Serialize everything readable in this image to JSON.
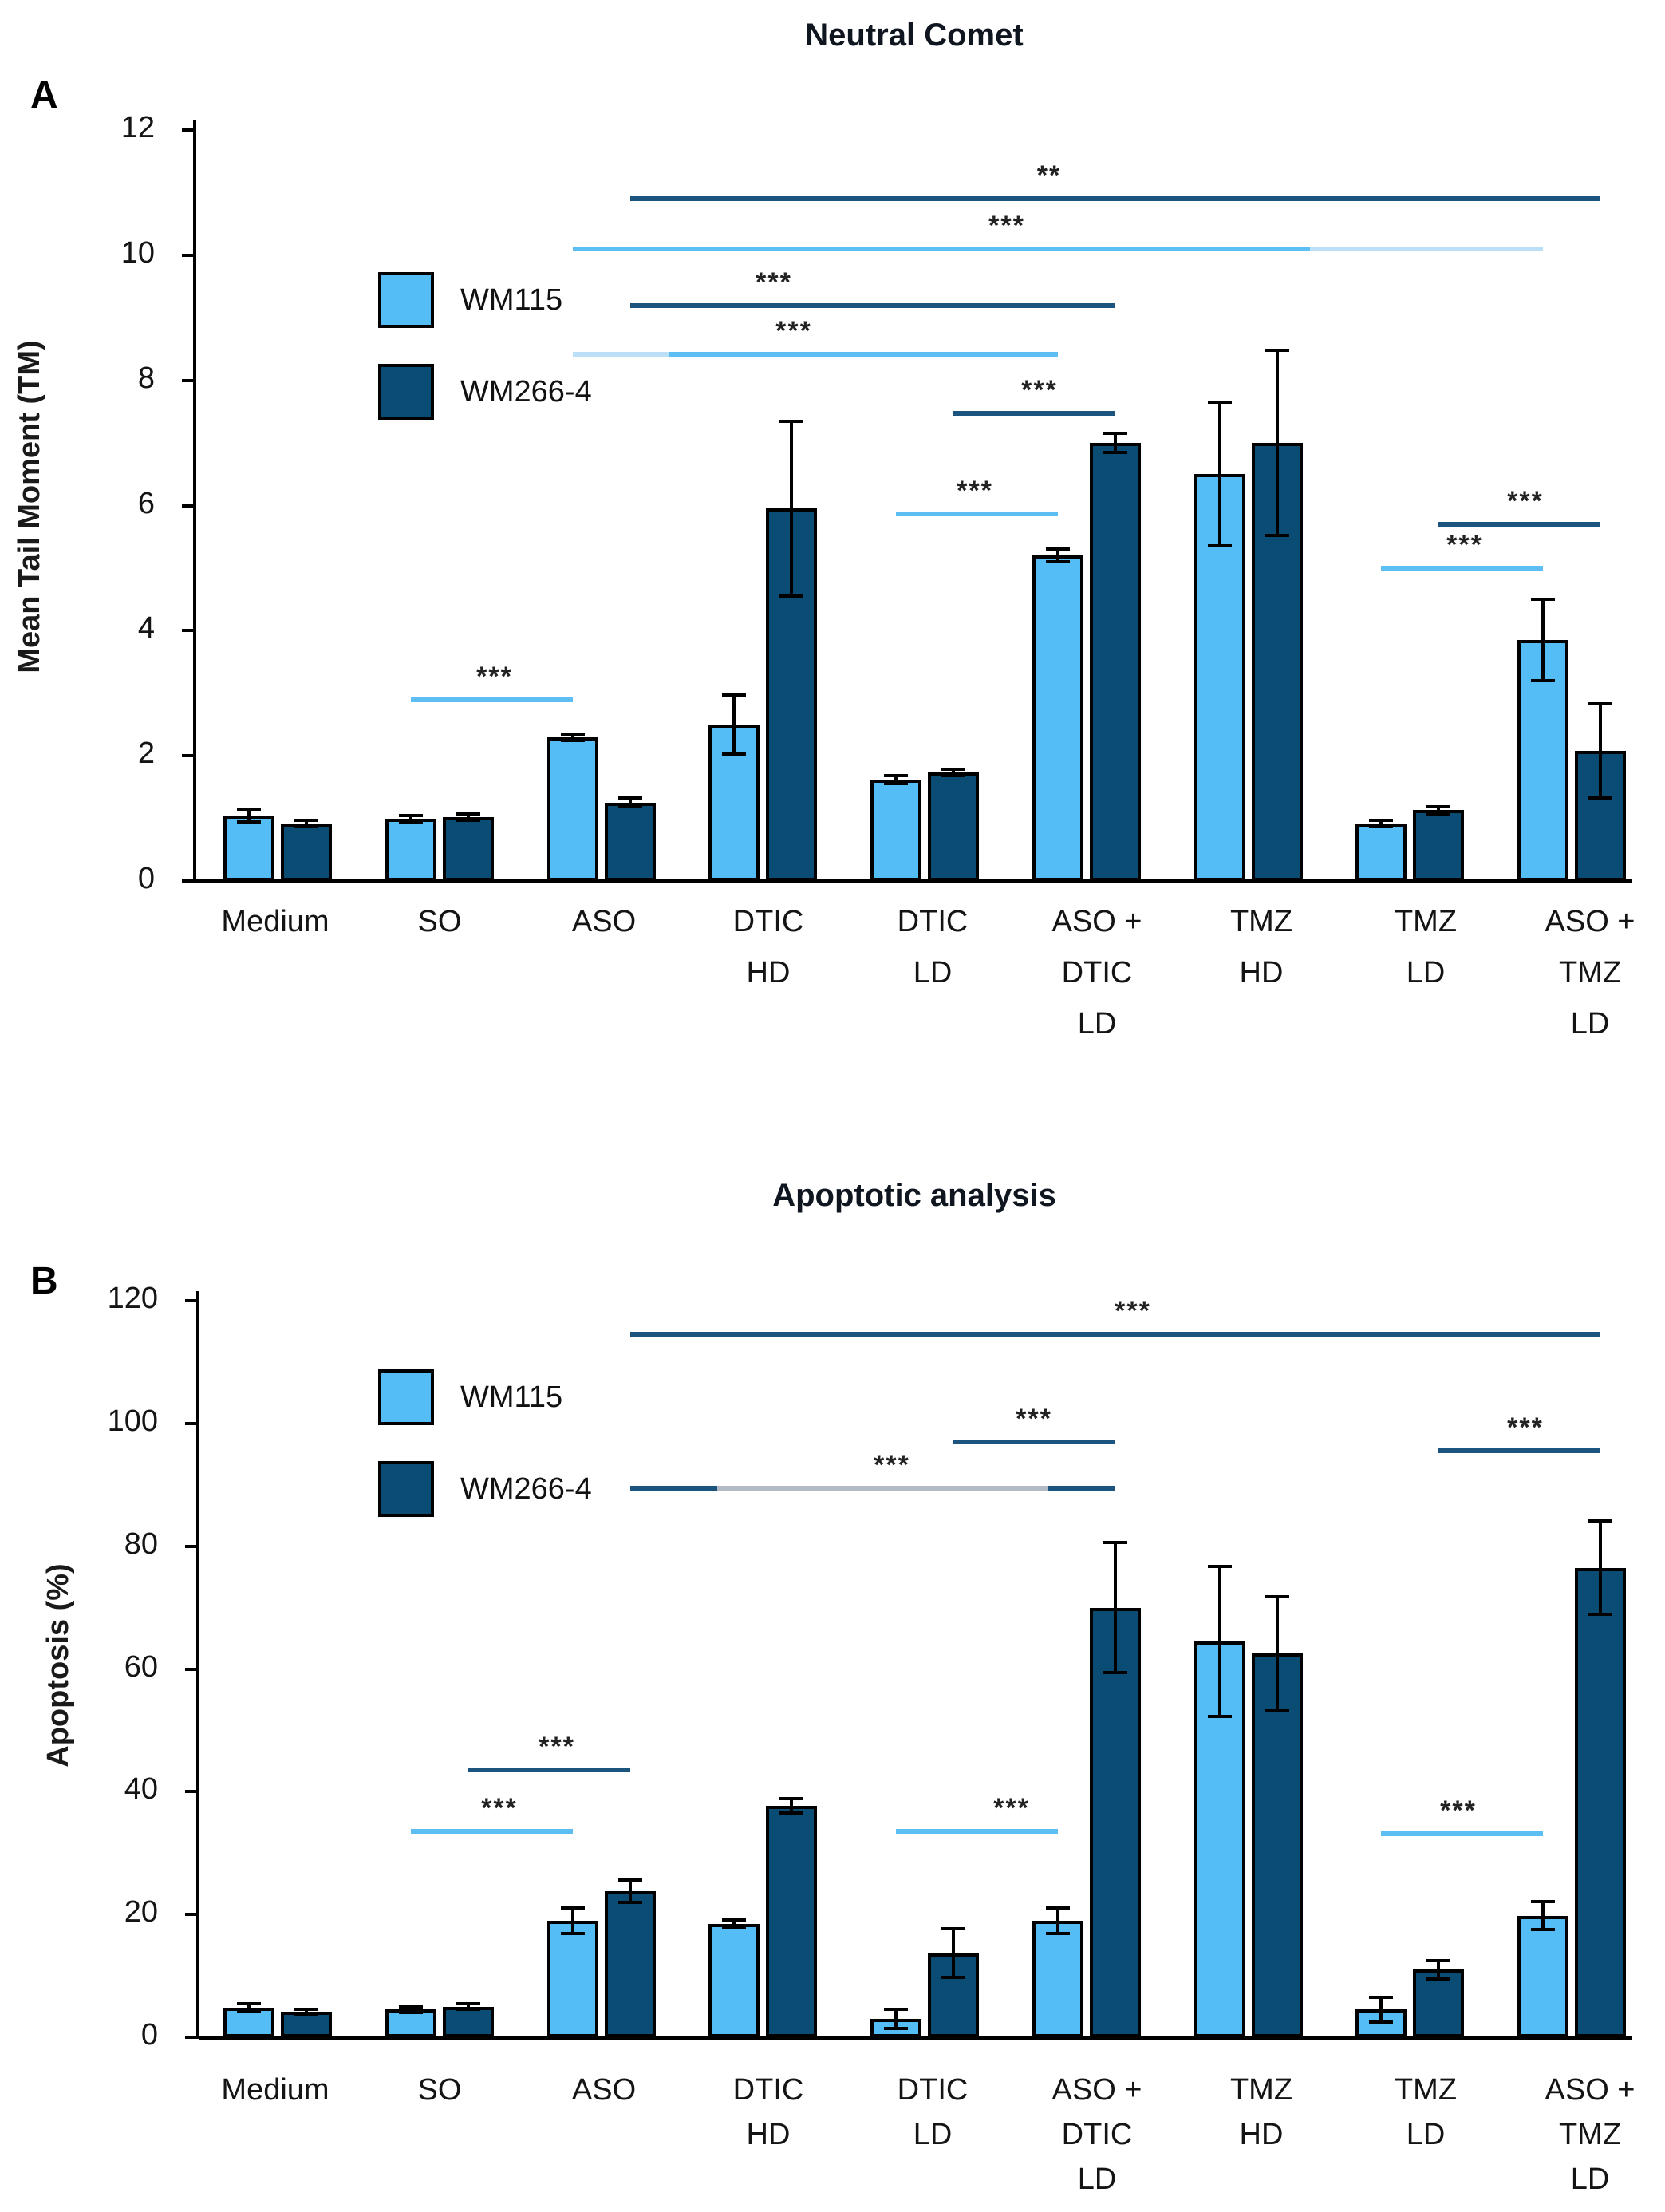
{
  "colors": {
    "light": "#55BDF5",
    "dark": "#0B4C75",
    "light_faded": "#BBDFF7",
    "gray": "#B2BAC6",
    "sig_dark": "#1A547F",
    "sig_light": "#5CBEF2"
  },
  "chart_data": [
    {
      "type": "bar",
      "panel_label": "A",
      "title": "Neutral Comet",
      "ylabel": "Mean Tail Moment (TM)",
      "xlabel": "",
      "ylim": [
        0,
        12
      ],
      "ytick_step": 2,
      "grid": false,
      "legend_position": "top-left",
      "categories": [
        [
          "Medium"
        ],
        [
          "SO"
        ],
        [
          "ASO"
        ],
        [
          "DTIC",
          "HD"
        ],
        [
          "DTIC",
          "LD"
        ],
        [
          "ASO +",
          "DTIC",
          "LD"
        ],
        [
          "TMZ",
          "HD"
        ],
        [
          "TMZ",
          "LD"
        ],
        [
          "ASO +",
          "TMZ",
          "LD"
        ]
      ],
      "series": [
        {
          "name": "WM115",
          "color_key": "light",
          "values": [
            1.05,
            1.0,
            2.3,
            2.5,
            1.62,
            5.2,
            6.5,
            0.92,
            3.85
          ],
          "errors": [
            0.1,
            0.05,
            0.05,
            0.47,
            0.06,
            0.1,
            1.15,
            0.05,
            0.65
          ]
        },
        {
          "name": "WM266-4",
          "color_key": "dark",
          "values": [
            0.92,
            1.02,
            1.25,
            5.95,
            1.73,
            7.0,
            7.0,
            1.13,
            2.08
          ],
          "errors": [
            0.05,
            0.05,
            0.07,
            1.4,
            0.05,
            0.15,
            1.48,
            0.06,
            0.75
          ]
        }
      ],
      "significance": [
        {
          "y": 10.9,
          "label": "**",
          "color": "dark",
          "from": [
            2,
            1
          ],
          "to": [
            8,
            1
          ],
          "label_x": 1315
        },
        {
          "y": 10.1,
          "label": "***",
          "color": "light",
          "from": [
            2,
            0
          ],
          "to": [
            8,
            0
          ],
          "label_x": 1262,
          "segments": [
            {
              "t0": 0,
              "t1": 0.76,
              "color": "light"
            },
            {
              "t0": 0.76,
              "t1": 1,
              "color": "light_faded"
            }
          ]
        },
        {
          "y": 9.2,
          "label": "***",
          "color": "dark",
          "from": [
            2,
            1
          ],
          "to": [
            5,
            1
          ],
          "label_x": 970
        },
        {
          "y": 8.42,
          "label": "***",
          "color": "light",
          "from": [
            2,
            0
          ],
          "to": [
            5,
            0
          ],
          "label_x": 995,
          "segments": [
            {
              "t0": 0,
              "t1": 0.2,
              "color": "light_faded"
            },
            {
              "t0": 0.2,
              "t1": 1,
              "color": "light"
            }
          ]
        },
        {
          "y": 7.47,
          "label": "***",
          "color": "dark",
          "from": [
            4,
            1
          ],
          "to": [
            5,
            1
          ],
          "label_x": 1303
        },
        {
          "y": 5.86,
          "label": "***",
          "color": "light",
          "from": [
            4,
            0
          ],
          "to": [
            5,
            0
          ],
          "label_x": 1222
        },
        {
          "y": 5.7,
          "label": "***",
          "color": "dark",
          "from": [
            7,
            1
          ],
          "to": [
            8,
            1
          ],
          "label_x": 1912
        },
        {
          "y": 5.0,
          "label": "***",
          "color": "light",
          "from": [
            7,
            0
          ],
          "to": [
            8,
            0
          ],
          "label_x": 1836
        },
        {
          "y": 2.9,
          "label": "***",
          "color": "light",
          "from": [
            1,
            0
          ],
          "to": [
            2,
            0
          ],
          "label_x": 620
        }
      ]
    },
    {
      "type": "bar",
      "panel_label": "B",
      "title": "Apoptotic analysis",
      "ylabel": "Apoptosis (%)",
      "xlabel": "",
      "ylim": [
        0,
        120
      ],
      "ytick_step": 20,
      "grid": false,
      "legend_position": "top-left",
      "categories": [
        [
          "Medium"
        ],
        [
          "SO"
        ],
        [
          "ASO"
        ],
        [
          "DTIC",
          "HD"
        ],
        [
          "DTIC",
          "LD"
        ],
        [
          "ASO +",
          "DTIC",
          "LD"
        ],
        [
          "TMZ",
          "HD"
        ],
        [
          "TMZ",
          "LD"
        ],
        [
          "ASO +",
          "TMZ",
          "LD"
        ]
      ],
      "series": [
        {
          "name": "WM115",
          "color_key": "light",
          "values": [
            4.8,
            4.5,
            19.0,
            18.5,
            3.0,
            19.0,
            64.5,
            4.5,
            19.8
          ],
          "errors": [
            0.6,
            0.5,
            2.1,
            0.6,
            1.6,
            2.1,
            12.2,
            2.0,
            2.3
          ]
        },
        {
          "name": "WM266-4",
          "color_key": "dark",
          "values": [
            4.2,
            5.0,
            23.8,
            37.7,
            13.7,
            70.0,
            62.5,
            11.0,
            76.5
          ],
          "errors": [
            0.4,
            0.5,
            1.8,
            1.2,
            4.0,
            10.6,
            9.3,
            1.5,
            7.6
          ]
        }
      ],
      "significance": [
        {
          "y": 114.5,
          "label": "***",
          "color": "dark",
          "from": [
            2,
            1
          ],
          "to": [
            8,
            1
          ],
          "label_x": 1420
        },
        {
          "y": 97.0,
          "label": "***",
          "color": "dark",
          "from": [
            4,
            1
          ],
          "to": [
            5,
            1
          ],
          "label_x": 1296
        },
        {
          "y": 89.5,
          "label": "***",
          "color": "dark",
          "from": [
            2,
            1
          ],
          "to": [
            5,
            1
          ],
          "label_x": 1118,
          "segments": [
            {
              "t0": 0,
              "t1": 0.18,
              "color": "dark"
            },
            {
              "t0": 0.18,
              "t1": 0.86,
              "color": "gray"
            },
            {
              "t0": 0.86,
              "t1": 1,
              "color": "dark"
            }
          ]
        },
        {
          "y": 95.5,
          "label": "***",
          "color": "dark",
          "from": [
            7,
            1
          ],
          "to": [
            8,
            1
          ],
          "label_x": 1912
        },
        {
          "y": 43.5,
          "label": "***",
          "color": "dark",
          "from": [
            1,
            1
          ],
          "to": [
            2,
            1
          ],
          "label_x": 698
        },
        {
          "y": 33.5,
          "label": "***",
          "color": "light",
          "from": [
            1,
            0
          ],
          "to": [
            2,
            0
          ],
          "label_x": 626
        },
        {
          "y": 33.5,
          "label": "***",
          "color": "light",
          "from": [
            4,
            0
          ],
          "to": [
            5,
            0
          ],
          "label_x": 1268
        },
        {
          "y": 33.2,
          "label": "***",
          "color": "light",
          "from": [
            7,
            0
          ],
          "to": [
            8,
            0
          ],
          "label_x": 1828
        }
      ]
    }
  ]
}
